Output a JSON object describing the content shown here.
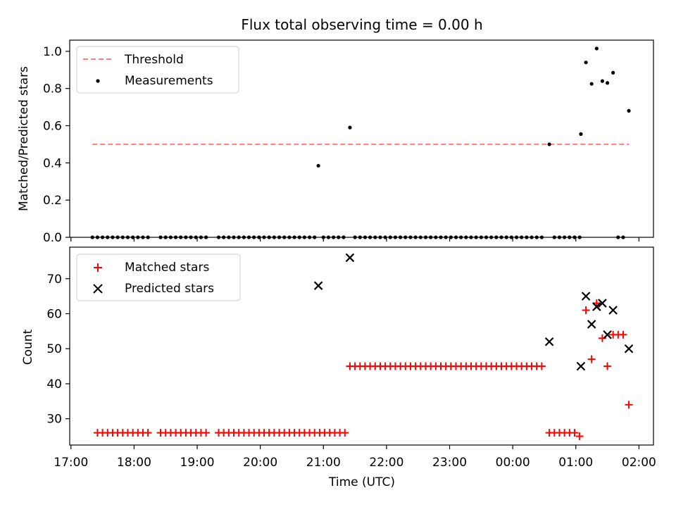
{
  "title": "Flux total observing time = 0.00 h",
  "chart_data": [
    {
      "type": "scatter",
      "ylabel": "Matched/Predicted stars",
      "ylim": [
        0,
        1.06
      ],
      "yticks": [
        "0.0",
        "0.2",
        "0.4",
        "0.6",
        "0.8",
        "1.0"
      ],
      "ytick_values": [
        0,
        0.2,
        0.4,
        0.6,
        0.8,
        1.0
      ],
      "legend_placement": "top-left",
      "threshold": {
        "name": "Threshold",
        "value": 0.5,
        "x_start": 17.34,
        "x_end": 25.84,
        "color": "#ff7f7f"
      },
      "series": [
        {
          "name": "Measurements",
          "color": "#000000",
          "points": [
            [
              17.34,
              0
            ],
            [
              17.42,
              0
            ],
            [
              17.5,
              0
            ],
            [
              17.58,
              0
            ],
            [
              17.66,
              0
            ],
            [
              17.74,
              0
            ],
            [
              17.82,
              0
            ],
            [
              17.9,
              0
            ],
            [
              17.98,
              0
            ],
            [
              18.06,
              0
            ],
            [
              18.14,
              0
            ],
            [
              18.22,
              0
            ],
            [
              18.42,
              0
            ],
            [
              18.5,
              0
            ],
            [
              18.58,
              0
            ],
            [
              18.66,
              0
            ],
            [
              18.74,
              0
            ],
            [
              18.82,
              0
            ],
            [
              18.9,
              0
            ],
            [
              18.98,
              0
            ],
            [
              19.06,
              0
            ],
            [
              19.14,
              0
            ],
            [
              19.34,
              0
            ],
            [
              19.42,
              0
            ],
            [
              19.5,
              0
            ],
            [
              19.58,
              0
            ],
            [
              19.66,
              0
            ],
            [
              19.74,
              0
            ],
            [
              19.82,
              0
            ],
            [
              19.9,
              0
            ],
            [
              19.98,
              0
            ],
            [
              20.06,
              0
            ],
            [
              20.14,
              0
            ],
            [
              20.22,
              0
            ],
            [
              20.3,
              0
            ],
            [
              20.38,
              0
            ],
            [
              20.46,
              0
            ],
            [
              20.54,
              0
            ],
            [
              20.62,
              0
            ],
            [
              20.7,
              0
            ],
            [
              20.78,
              0
            ],
            [
              20.86,
              0
            ],
            [
              20.92,
              0.385
            ],
            [
              21.0,
              0
            ],
            [
              21.08,
              0
            ],
            [
              21.16,
              0
            ],
            [
              21.24,
              0
            ],
            [
              21.32,
              0
            ],
            [
              21.42,
              0.59
            ],
            [
              21.5,
              0
            ],
            [
              21.58,
              0
            ],
            [
              21.66,
              0
            ],
            [
              21.74,
              0
            ],
            [
              21.82,
              0
            ],
            [
              21.9,
              0
            ],
            [
              21.98,
              0
            ],
            [
              22.06,
              0
            ],
            [
              22.14,
              0
            ],
            [
              22.22,
              0
            ],
            [
              22.3,
              0
            ],
            [
              22.38,
              0
            ],
            [
              22.46,
              0
            ],
            [
              22.54,
              0
            ],
            [
              22.62,
              0
            ],
            [
              22.7,
              0
            ],
            [
              22.78,
              0
            ],
            [
              22.86,
              0
            ],
            [
              22.94,
              0
            ],
            [
              23.02,
              0
            ],
            [
              23.1,
              0
            ],
            [
              23.18,
              0
            ],
            [
              23.26,
              0
            ],
            [
              23.34,
              0
            ],
            [
              23.42,
              0
            ],
            [
              23.5,
              0
            ],
            [
              23.58,
              0
            ],
            [
              23.66,
              0
            ],
            [
              23.74,
              0
            ],
            [
              23.82,
              0
            ],
            [
              23.9,
              0
            ],
            [
              23.98,
              0
            ],
            [
              24.06,
              0
            ],
            [
              24.14,
              0
            ],
            [
              24.22,
              0
            ],
            [
              24.3,
              0
            ],
            [
              24.38,
              0
            ],
            [
              24.46,
              0
            ],
            [
              24.58,
              0.5
            ],
            [
              24.66,
              0
            ],
            [
              24.74,
              0
            ],
            [
              24.82,
              0
            ],
            [
              24.9,
              0
            ],
            [
              24.98,
              0
            ],
            [
              25.06,
              0
            ],
            [
              25.08,
              0.555
            ],
            [
              25.16,
              0.94
            ],
            [
              25.25,
              0.825
            ],
            [
              25.33,
              1.015
            ],
            [
              25.42,
              0.84
            ],
            [
              25.5,
              0.83
            ],
            [
              25.59,
              0.885
            ],
            [
              25.67,
              0
            ],
            [
              25.75,
              0
            ],
            [
              25.84,
              0.68
            ]
          ]
        }
      ]
    },
    {
      "type": "scatter",
      "xlabel": "Time (UTC)",
      "ylabel": "Count",
      "ylim": [
        22.5,
        79
      ],
      "yticks": [
        "30",
        "40",
        "50",
        "60",
        "70"
      ],
      "ytick_values": [
        30,
        40,
        50,
        60,
        70
      ],
      "xlim": [
        16.98,
        26.23
      ],
      "xticks": [
        "17:00",
        "18:00",
        "19:00",
        "20:00",
        "21:00",
        "22:00",
        "23:00",
        "00:00",
        "01:00",
        "02:00"
      ],
      "xtick_values": [
        17,
        18,
        19,
        20,
        21,
        22,
        23,
        24,
        25,
        26
      ],
      "legend_placement": "top-left",
      "series": [
        {
          "name": "Matched stars",
          "color": "#ff0000",
          "marker": "plus",
          "points": [
            [
              17.42,
              26
            ],
            [
              17.5,
              26
            ],
            [
              17.58,
              26
            ],
            [
              17.66,
              26
            ],
            [
              17.74,
              26
            ],
            [
              17.82,
              26
            ],
            [
              17.9,
              26
            ],
            [
              17.98,
              26
            ],
            [
              18.06,
              26
            ],
            [
              18.14,
              26
            ],
            [
              18.22,
              26
            ],
            [
              18.42,
              26
            ],
            [
              18.5,
              26
            ],
            [
              18.58,
              26
            ],
            [
              18.66,
              26
            ],
            [
              18.74,
              26
            ],
            [
              18.82,
              26
            ],
            [
              18.9,
              26
            ],
            [
              18.98,
              26
            ],
            [
              19.06,
              26
            ],
            [
              19.14,
              26
            ],
            [
              19.34,
              26
            ],
            [
              19.42,
              26
            ],
            [
              19.5,
              26
            ],
            [
              19.58,
              26
            ],
            [
              19.66,
              26
            ],
            [
              19.74,
              26
            ],
            [
              19.82,
              26
            ],
            [
              19.9,
              26
            ],
            [
              19.98,
              26
            ],
            [
              20.06,
              26
            ],
            [
              20.14,
              26
            ],
            [
              20.22,
              26
            ],
            [
              20.3,
              26
            ],
            [
              20.38,
              26
            ],
            [
              20.46,
              26
            ],
            [
              20.54,
              26
            ],
            [
              20.62,
              26
            ],
            [
              20.7,
              26
            ],
            [
              20.78,
              26
            ],
            [
              20.86,
              26
            ],
            [
              20.94,
              26
            ],
            [
              21.02,
              26
            ],
            [
              21.1,
              26
            ],
            [
              21.18,
              26
            ],
            [
              21.26,
              26
            ],
            [
              21.34,
              26
            ],
            [
              21.42,
              45
            ],
            [
              21.5,
              45
            ],
            [
              21.58,
              45
            ],
            [
              21.66,
              45
            ],
            [
              21.74,
              45
            ],
            [
              21.82,
              45
            ],
            [
              21.9,
              45
            ],
            [
              21.98,
              45
            ],
            [
              22.06,
              45
            ],
            [
              22.14,
              45
            ],
            [
              22.22,
              45
            ],
            [
              22.3,
              45
            ],
            [
              22.38,
              45
            ],
            [
              22.46,
              45
            ],
            [
              22.54,
              45
            ],
            [
              22.62,
              45
            ],
            [
              22.7,
              45
            ],
            [
              22.78,
              45
            ],
            [
              22.86,
              45
            ],
            [
              22.94,
              45
            ],
            [
              23.02,
              45
            ],
            [
              23.1,
              45
            ],
            [
              23.18,
              45
            ],
            [
              23.26,
              45
            ],
            [
              23.34,
              45
            ],
            [
              23.42,
              45
            ],
            [
              23.5,
              45
            ],
            [
              23.58,
              45
            ],
            [
              23.66,
              45
            ],
            [
              23.74,
              45
            ],
            [
              23.82,
              45
            ],
            [
              23.9,
              45
            ],
            [
              23.98,
              45
            ],
            [
              24.06,
              45
            ],
            [
              24.14,
              45
            ],
            [
              24.22,
              45
            ],
            [
              24.3,
              45
            ],
            [
              24.38,
              45
            ],
            [
              24.46,
              45
            ],
            [
              24.58,
              26
            ],
            [
              24.66,
              26
            ],
            [
              24.74,
              26
            ],
            [
              24.82,
              26
            ],
            [
              24.9,
              26
            ],
            [
              24.98,
              26
            ],
            [
              25.06,
              25
            ],
            [
              25.16,
              61
            ],
            [
              25.25,
              47
            ],
            [
              25.33,
              63
            ],
            [
              25.42,
              53
            ],
            [
              25.5,
              45
            ],
            [
              25.59,
              54
            ],
            [
              25.67,
              54
            ],
            [
              25.75,
              54
            ],
            [
              25.84,
              34
            ]
          ]
        },
        {
          "name": "Predicted stars",
          "color": "#000000",
          "marker": "x",
          "points": [
            [
              20.92,
              68
            ],
            [
              21.42,
              76
            ],
            [
              24.58,
              52
            ],
            [
              25.08,
              45
            ],
            [
              25.16,
              65
            ],
            [
              25.25,
              57
            ],
            [
              25.33,
              62
            ],
            [
              25.42,
              63
            ],
            [
              25.5,
              54
            ],
            [
              25.59,
              61
            ],
            [
              25.84,
              50
            ]
          ]
        }
      ]
    }
  ]
}
